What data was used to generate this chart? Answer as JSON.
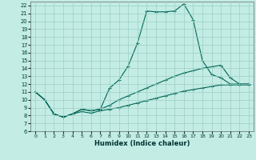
{
  "xlabel": "Humidex (Indice chaleur)",
  "bg_color": "#c2ece4",
  "grid_color": "#9dcfc5",
  "line_color": "#006655",
  "xlim": [
    -0.5,
    23.5
  ],
  "ylim": [
    6,
    22.5
  ],
  "xticks": [
    0,
    1,
    2,
    3,
    4,
    5,
    6,
    7,
    8,
    9,
    10,
    11,
    12,
    13,
    14,
    15,
    16,
    17,
    18,
    19,
    20,
    21,
    22,
    23
  ],
  "yticks": [
    6,
    7,
    8,
    9,
    10,
    11,
    12,
    13,
    14,
    15,
    16,
    17,
    18,
    19,
    20,
    21,
    22
  ],
  "series1_x": [
    0,
    1,
    2,
    3,
    4,
    5,
    6,
    7,
    8,
    9,
    10,
    11,
    12,
    13,
    14,
    15,
    16,
    17,
    18,
    19,
    20,
    21,
    22,
    23
  ],
  "series1_y": [
    11.0,
    10.0,
    8.2,
    7.8,
    8.2,
    8.8,
    8.6,
    8.8,
    11.5,
    12.5,
    14.3,
    17.2,
    21.3,
    21.2,
    21.2,
    21.3,
    22.2,
    20.2,
    15.0,
    13.2,
    12.8,
    12.0,
    12.0,
    12.0
  ],
  "series2_x": [
    0,
    1,
    2,
    3,
    4,
    5,
    6,
    7,
    8,
    9,
    10,
    11,
    12,
    13,
    14,
    15,
    16,
    17,
    18,
    19,
    20,
    21,
    22,
    23
  ],
  "series2_y": [
    11.0,
    10.0,
    8.2,
    7.8,
    8.2,
    8.8,
    8.6,
    8.8,
    9.3,
    10.0,
    10.5,
    11.0,
    11.5,
    12.0,
    12.5,
    13.0,
    13.4,
    13.7,
    14.0,
    14.2,
    14.4,
    12.8,
    12.0,
    12.0
  ],
  "series3_x": [
    0,
    1,
    2,
    3,
    4,
    5,
    6,
    7,
    8,
    9,
    10,
    11,
    12,
    13,
    14,
    15,
    16,
    17,
    18,
    19,
    20,
    21,
    22,
    23
  ],
  "series3_y": [
    11.0,
    10.0,
    8.2,
    7.8,
    8.2,
    8.5,
    8.3,
    8.6,
    8.8,
    9.0,
    9.3,
    9.6,
    9.9,
    10.2,
    10.5,
    10.8,
    11.1,
    11.3,
    11.5,
    11.7,
    11.9,
    11.9,
    11.9,
    11.9
  ]
}
